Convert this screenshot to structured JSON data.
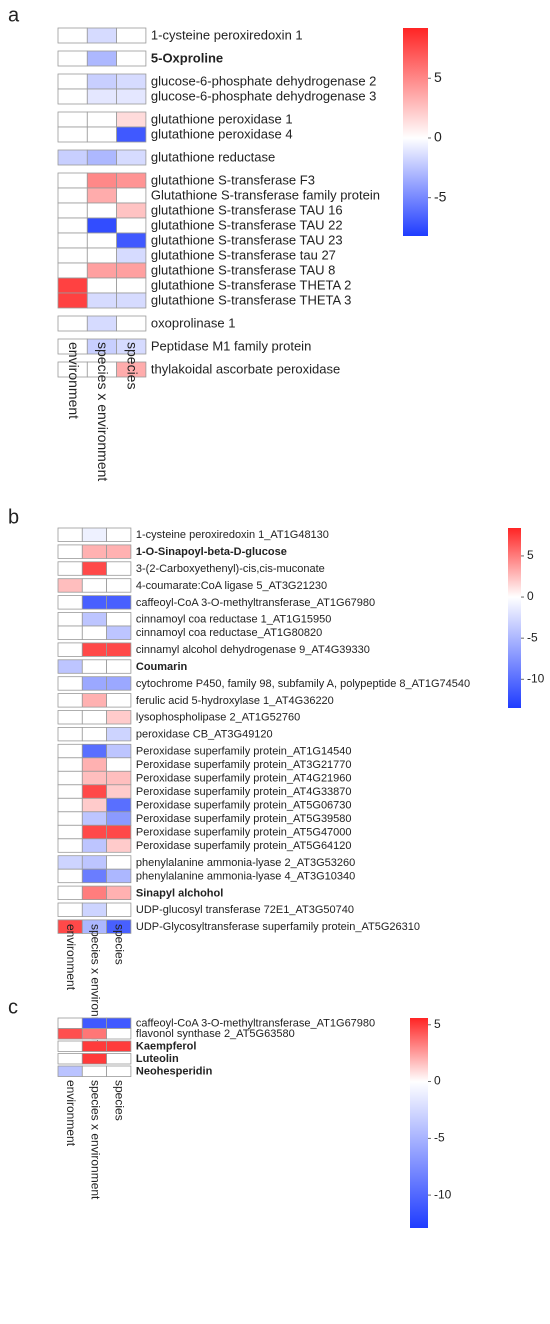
{
  "chart_data": [
    {
      "type": "heatmap",
      "panel": "a",
      "columns": [
        "environment",
        "species x environment",
        "species"
      ],
      "row_groups": [
        {
          "rows": [
            "1-cysteine peroxiredoxin 1"
          ],
          "values": [
            [
              0,
              -1.5,
              0
            ]
          ]
        },
        {
          "rows": [
            "5-Oxproline"
          ],
          "values": [
            [
              0,
              -3,
              0
            ]
          ],
          "bold": [
            true
          ]
        },
        {
          "rows": [
            "glucose-6-phosphate dehydrogenase 2",
            "glucose-6-phosphate dehydrogenase 3"
          ],
          "values": [
            [
              0,
              -2,
              -1.5
            ],
            [
              0,
              -1,
              -1
            ]
          ]
        },
        {
          "rows": [
            "glutathione peroxidase 1",
            "glutathione peroxidase 4"
          ],
          "values": [
            [
              0,
              0,
              1.5
            ],
            [
              0,
              0,
              -7
            ]
          ]
        },
        {
          "rows": [
            "glutathione reductase"
          ],
          "values": [
            [
              -2,
              -3,
              -1.5
            ]
          ]
        },
        {
          "rows": [
            "glutathione S-transferase F3",
            "Glutathione S-transferase family protein",
            "glutathione S-transferase TAU 16",
            "glutathione S-transferase TAU 22",
            "glutathione S-transferase TAU 23",
            "glutathione S-transferase tau 27",
            "glutathione S-transferase TAU 8",
            "glutathione S-transferase THETA 2",
            "glutathione S-transferase THETA 3"
          ],
          "values": [
            [
              0,
              5,
              4.5
            ],
            [
              0,
              3.5,
              0
            ],
            [
              0,
              0,
              2.5
            ],
            [
              0,
              -7.5,
              0
            ],
            [
              0,
              0,
              -7
            ],
            [
              0,
              0,
              -1.5
            ],
            [
              0,
              4,
              4
            ],
            [
              8,
              0,
              0
            ],
            [
              8,
              -1.5,
              -1.5
            ]
          ]
        },
        {
          "rows": [
            "oxoprolinase 1"
          ],
          "values": [
            [
              0,
              -1.5,
              0
            ]
          ]
        },
        {
          "rows": [
            "Peptidase M1 family protein"
          ],
          "values": [
            [
              0,
              -2,
              -1.5
            ]
          ]
        },
        {
          "rows": [
            "thylakoidal ascorbate peroxidase"
          ],
          "values": [
            [
              0,
              0,
              3.5
            ]
          ]
        }
      ],
      "clim": [
        -8.2,
        9.2
      ],
      "cticks": [
        5,
        0,
        -5
      ],
      "colormap": [
        "#1f3cff",
        "#ffffff",
        "#ff2424"
      ]
    },
    {
      "type": "heatmap",
      "panel": "b",
      "columns": [
        "environment",
        "species x environment",
        "species"
      ],
      "row_groups": [
        {
          "rows": [
            "1-cysteine peroxiredoxin 1_AT1G48130"
          ],
          "values": [
            [
              0,
              -1,
              0
            ]
          ]
        },
        {
          "rows": [
            "1-O-Sinapoyl-beta-D-glucose"
          ],
          "values": [
            [
              0,
              3,
              3
            ]
          ],
          "bold": [
            true
          ]
        },
        {
          "rows": [
            "3-(2-Carboxyethenyl)-cis,cis-muconate"
          ],
          "values": [
            [
              0,
              7,
              0
            ]
          ]
        },
        {
          "rows": [
            "4-coumarate:CoA ligase 5_AT3G21230"
          ],
          "values": [
            [
              2.5,
              0,
              0
            ]
          ]
        },
        {
          "rows": [
            "caffeoyl-CoA 3-O-methyltransferase_AT1G67980"
          ],
          "values": [
            [
              0,
              -11,
              -11
            ]
          ]
        },
        {
          "rows": [
            "cinnamoyl coa reductase 1_AT1G15950",
            "cinnamoyl coa reductase_AT1G80820"
          ],
          "values": [
            [
              0,
              -4,
              0
            ],
            [
              0,
              0,
              -4
            ]
          ]
        },
        {
          "rows": [
            "cinnamyl alcohol dehydrogenase 9_AT4G39330"
          ],
          "values": [
            [
              0,
              7,
              7
            ]
          ]
        },
        {
          "rows": [
            "Coumarin"
          ],
          "values": [
            [
              -4,
              0,
              0
            ]
          ],
          "bold": [
            true
          ]
        },
        {
          "rows": [
            "cytochrome P450, family 98, subfamily A, polypeptide 8_AT1G74540"
          ],
          "values": [
            [
              0,
              -6,
              -6
            ]
          ]
        },
        {
          "rows": [
            "ferulic acid 5-hydroxylase 1_AT4G36220"
          ],
          "values": [
            [
              0,
              3,
              0
            ]
          ]
        },
        {
          "rows": [
            "lysophospholipase 2_AT1G52760"
          ],
          "values": [
            [
              0,
              0,
              2
            ]
          ]
        },
        {
          "rows": [
            "peroxidase CB_AT3G49120"
          ],
          "values": [
            [
              0,
              0,
              -3
            ]
          ]
        },
        {
          "rows": [
            "Peroxidase superfamily protein_AT1G14540",
            "Peroxidase superfamily protein_AT3G21770",
            "Peroxidase superfamily protein_AT4G21960",
            "Peroxidase superfamily protein_AT4G33870",
            "Peroxidase superfamily protein_AT5G06730",
            "Peroxidase superfamily protein_AT5G39580",
            "Peroxidase superfamily protein_AT5G47000",
            "Peroxidase superfamily protein_AT5G64120"
          ],
          "values": [
            [
              0,
              -10,
              -4
            ],
            [
              0,
              3,
              0
            ],
            [
              0,
              2.5,
              2.5
            ],
            [
              0,
              7,
              2
            ],
            [
              0,
              2,
              -10
            ],
            [
              0,
              -4,
              -7
            ],
            [
              0,
              7,
              7
            ],
            [
              0,
              -4,
              2
            ]
          ]
        },
        {
          "rows": [
            "phenylalanine ammonia-lyase 2_AT3G53260",
            "phenylalanine ammonia-lyase 4_AT3G10340"
          ],
          "values": [
            [
              -3,
              -4,
              0
            ],
            [
              0,
              -9,
              -5
            ]
          ]
        },
        {
          "rows": [
            "Sinapyl alchohol"
          ],
          "values": [
            [
              0,
              5,
              3
            ]
          ],
          "bold": [
            true
          ]
        },
        {
          "rows": [
            "UDP-glucosyl transferase 72E1_AT3G50740"
          ],
          "values": [
            [
              0,
              -3,
              0
            ]
          ]
        },
        {
          "rows": [
            "UDP-Glycosyltransferase superfamily protein_AT5G26310"
          ],
          "values": [
            [
              7,
              -5,
              -11
            ]
          ]
        }
      ],
      "clim": [
        -13.5,
        8.4
      ],
      "cticks": [
        5,
        0,
        -5,
        -10
      ],
      "colormap": [
        "#1f3cff",
        "#ffffff",
        "#ff2424"
      ]
    },
    {
      "type": "heatmap",
      "panel": "c",
      "columns": [
        "environment",
        "species x environment",
        "species"
      ],
      "row_groups": [
        {
          "rows": [
            "caffeoyl-CoA 3-O-methyltransferase_AT1G67980",
            "flavonol synthase 2_AT5G63580"
          ],
          "values": [
            [
              0,
              -11,
              -11
            ],
            [
              4.5,
              3.5,
              0
            ]
          ]
        },
        {
          "rows": [
            "Kaempferol"
          ],
          "values": [
            [
              0,
              5,
              5
            ]
          ],
          "bold": [
            true
          ]
        },
        {
          "rows": [
            "Luteolin"
          ],
          "values": [
            [
              0,
              5,
              0
            ]
          ],
          "bold": [
            true
          ]
        },
        {
          "rows": [
            "Neohesperidin"
          ],
          "values": [
            [
              -4,
              0,
              0
            ]
          ],
          "bold": [
            true
          ]
        }
      ],
      "clim": [
        -12.9,
        5.6
      ],
      "cticks": [
        5,
        0,
        -5,
        -10
      ],
      "colormap": [
        "#1f3cff",
        "#ffffff",
        "#ff2424"
      ]
    }
  ]
}
